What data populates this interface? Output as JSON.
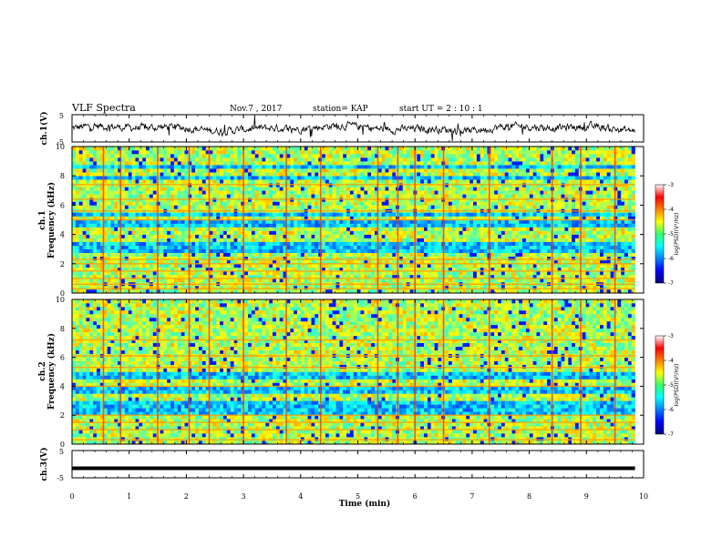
{
  "header": {
    "title": "VLF Spectra",
    "date": "Nov.7 , 2017",
    "station": "station= KAP",
    "start_ut": "start  UT =   2 : 10 : 1"
  },
  "chart_data": [
    {
      "type": "line",
      "panel": "ch1-waveform",
      "ylabel": "ch.1(V)",
      "ylim": [
        -5,
        5
      ],
      "yticks": [
        "5",
        "-5"
      ],
      "x_range_min": [
        0,
        9.85
      ],
      "note_values": "dense noisy waveform, amplitude roughly -3 to 3 V",
      "color": "#000000"
    },
    {
      "type": "heatmap",
      "panel": "ch1-spectrogram",
      "ylabel": "ch.1\nFrequency (kHz)",
      "ylabel_line1": "ch.1",
      "ylabel_line2": "Frequency (kHz)",
      "ylim": [
        0,
        10
      ],
      "yticks": [
        "0",
        "2",
        "4",
        "6",
        "8",
        "10"
      ],
      "x_range_min": [
        0,
        9.85
      ],
      "colorbar": {
        "label": "log(PSD)(V²/Hz)",
        "range": [
          -7,
          -3
        ],
        "ticks": [
          "-3",
          "-4",
          "-5",
          "-6",
          "-7"
        ]
      },
      "strong_bands_khz": [
        0.3,
        0.6,
        1.0,
        1.5,
        2.0,
        2.3,
        5.0,
        5.6,
        6.4,
        7.4
      ],
      "low_power_bands_khz": [
        [
          2.7,
          3.4
        ],
        [
          4.6,
          5.0
        ],
        [
          5.3,
          5.6
        ],
        [
          7.7,
          8.0
        ],
        [
          8.5,
          8.7
        ]
      ],
      "bright_vertical_lines_min": [
        0.55,
        0.85,
        1.5,
        2.05,
        2.4,
        3.0,
        3.75,
        4.35,
        5.35,
        5.7,
        6.0,
        6.5,
        7.3,
        8.4,
        8.9,
        9.5
      ]
    },
    {
      "type": "heatmap",
      "panel": "ch2-spectrogram",
      "ylabel_line1": "ch.2",
      "ylabel_line2": "Frequency (kHz)",
      "ylim": [
        0,
        10
      ],
      "yticks": [
        "0",
        "2",
        "4",
        "6",
        "8",
        "10"
      ],
      "x_range_min": [
        0,
        9.85
      ],
      "colorbar": {
        "label": "log(PSD)(V²/Hz)",
        "range": [
          -7,
          -3
        ],
        "ticks": [
          "-3",
          "-4",
          "-5",
          "-6",
          "-7"
        ]
      },
      "strong_bands_khz": [
        0.3,
        1.0,
        1.5,
        2.0,
        4.0,
        5.3,
        6.1,
        7.2
      ],
      "low_power_bands_khz": [
        [
          2.1,
          3.1
        ],
        [
          3.6,
          3.9
        ],
        [
          4.6,
          5.0
        ]
      ],
      "bright_vertical_lines_min": [
        0.55,
        0.85,
        1.5,
        2.05,
        2.4,
        3.0,
        3.75,
        4.35,
        5.35,
        5.7,
        6.0,
        6.5,
        7.3,
        8.4,
        8.9,
        9.5
      ]
    },
    {
      "type": "line",
      "panel": "ch3-waveform",
      "ylabel": "ch.3(V)",
      "ylim": [
        -5,
        5
      ],
      "yticks": [
        "5",
        "-5"
      ],
      "xlabel": "Time  (min)",
      "xlim": [
        0,
        10
      ],
      "xticks": [
        "0",
        "1",
        "2",
        "3",
        "4",
        "5",
        "6",
        "7",
        "8",
        "9",
        "10"
      ],
      "constant_value_v": -1.5,
      "x_range_min": [
        0,
        9.85
      ],
      "color": "#000000"
    }
  ]
}
